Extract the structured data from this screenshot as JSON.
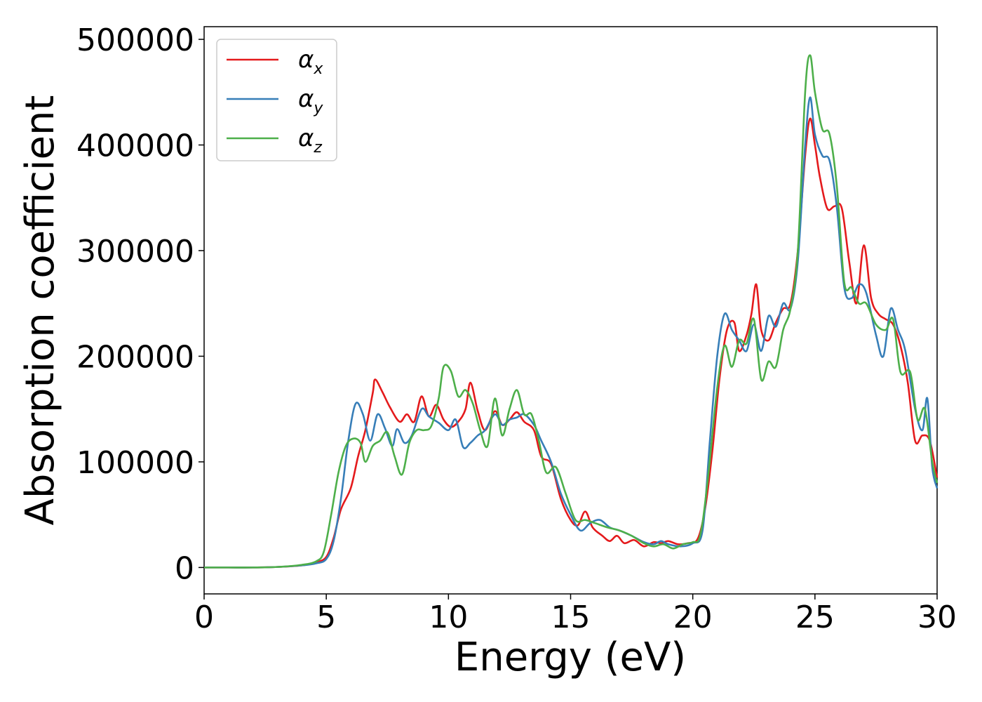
{
  "chart_data": {
    "type": "line",
    "xlabel": "Energy (eV)",
    "ylabel": "Absorption coefficient",
    "xlim": [
      0,
      30
    ],
    "ylim": [
      -25000,
      512000
    ],
    "xticks": [
      0,
      5,
      10,
      15,
      20,
      25,
      30
    ],
    "xtick_labels": [
      "0",
      "5",
      "10",
      "15",
      "20",
      "25",
      "30"
    ],
    "yticks": [
      0,
      100000,
      200000,
      300000,
      400000,
      500000
    ],
    "ytick_labels": [
      "0",
      "100000",
      "200000",
      "300000",
      "400000",
      "500000"
    ],
    "grid": false,
    "legend_position": "top-left",
    "series": [
      {
        "name": "α",
        "subscript": "x",
        "color": "#e41a1c",
        "points": [
          [
            0,
            0
          ],
          [
            1,
            0
          ],
          [
            2,
            0
          ],
          [
            3,
            500
          ],
          [
            4,
            2000
          ],
          [
            4.6,
            5000
          ],
          [
            5,
            10000
          ],
          [
            5.3,
            28000
          ],
          [
            5.6,
            55000
          ],
          [
            6,
            75000
          ],
          [
            6.3,
            105000
          ],
          [
            6.6,
            130000
          ],
          [
            6.9,
            165000
          ],
          [
            7.0,
            178000
          ],
          [
            7.3,
            166000
          ],
          [
            7.6,
            152000
          ],
          [
            8,
            138000
          ],
          [
            8.3,
            145000
          ],
          [
            8.6,
            138000
          ],
          [
            8.9,
            162000
          ],
          [
            9.2,
            143000
          ],
          [
            9.5,
            154000
          ],
          [
            9.8,
            140000
          ],
          [
            10.1,
            133000
          ],
          [
            10.4,
            138000
          ],
          [
            10.7,
            150000
          ],
          [
            10.9,
            175000
          ],
          [
            11.2,
            148000
          ],
          [
            11.5,
            130000
          ],
          [
            11.9,
            148000
          ],
          [
            12.2,
            135000
          ],
          [
            12.5,
            140000
          ],
          [
            12.8,
            147000
          ],
          [
            13.1,
            138000
          ],
          [
            13.5,
            130000
          ],
          [
            13.8,
            105000
          ],
          [
            14.2,
            98000
          ],
          [
            14.6,
            65000
          ],
          [
            15,
            45000
          ],
          [
            15.3,
            40000
          ],
          [
            15.6,
            53000
          ],
          [
            15.9,
            38000
          ],
          [
            16.3,
            30000
          ],
          [
            16.6,
            25000
          ],
          [
            16.9,
            30000
          ],
          [
            17.2,
            23000
          ],
          [
            17.6,
            26000
          ],
          [
            18,
            20000
          ],
          [
            18.4,
            24000
          ],
          [
            18.7,
            23000
          ],
          [
            19,
            25000
          ],
          [
            19.4,
            22000
          ],
          [
            19.8,
            23000
          ],
          [
            20.2,
            27000
          ],
          [
            20.5,
            55000
          ],
          [
            20.8,
            110000
          ],
          [
            21.1,
            180000
          ],
          [
            21.4,
            225000
          ],
          [
            21.7,
            232000
          ],
          [
            21.9,
            205000
          ],
          [
            22.2,
            220000
          ],
          [
            22.4,
            240000
          ],
          [
            22.6,
            268000
          ],
          [
            22.8,
            225000
          ],
          [
            23.1,
            215000
          ],
          [
            23.4,
            232000
          ],
          [
            23.7,
            245000
          ],
          [
            24,
            250000
          ],
          [
            24.3,
            300000
          ],
          [
            24.6,
            390000
          ],
          [
            24.8,
            425000
          ],
          [
            25.0,
            400000
          ],
          [
            25.2,
            370000
          ],
          [
            25.5,
            340000
          ],
          [
            25.8,
            342000
          ],
          [
            26.1,
            340000
          ],
          [
            26.4,
            290000
          ],
          [
            26.7,
            250000
          ],
          [
            27.0,
            305000
          ],
          [
            27.3,
            255000
          ],
          [
            27.6,
            240000
          ],
          [
            27.9,
            235000
          ],
          [
            28.2,
            230000
          ],
          [
            28.5,
            210000
          ],
          [
            28.8,
            175000
          ],
          [
            29.1,
            120000
          ],
          [
            29.4,
            125000
          ],
          [
            29.7,
            120000
          ],
          [
            30,
            85000
          ]
        ]
      },
      {
        "name": "α",
        "subscript": "y",
        "color": "#377eb8",
        "points": [
          [
            0,
            0
          ],
          [
            1,
            0
          ],
          [
            2,
            0
          ],
          [
            3,
            500
          ],
          [
            4,
            2000
          ],
          [
            4.6,
            4000
          ],
          [
            5,
            8000
          ],
          [
            5.3,
            25000
          ],
          [
            5.6,
            65000
          ],
          [
            5.9,
            120000
          ],
          [
            6.2,
            155000
          ],
          [
            6.5,
            145000
          ],
          [
            6.8,
            120000
          ],
          [
            7.1,
            145000
          ],
          [
            7.4,
            132000
          ],
          [
            7.7,
            115000
          ],
          [
            7.9,
            131000
          ],
          [
            8.2,
            118000
          ],
          [
            8.5,
            125000
          ],
          [
            8.9,
            150000
          ],
          [
            9.2,
            143000
          ],
          [
            9.6,
            137000
          ],
          [
            10.0,
            130000
          ],
          [
            10.3,
            140000
          ],
          [
            10.6,
            114000
          ],
          [
            10.9,
            118000
          ],
          [
            11.2,
            125000
          ],
          [
            11.5,
            130000
          ],
          [
            11.9,
            145000
          ],
          [
            12.2,
            135000
          ],
          [
            12.5,
            140000
          ],
          [
            12.8,
            142000
          ],
          [
            13.1,
            145000
          ],
          [
            13.5,
            135000
          ],
          [
            13.8,
            120000
          ],
          [
            14.2,
            100000
          ],
          [
            14.6,
            70000
          ],
          [
            15,
            50000
          ],
          [
            15.4,
            35000
          ],
          [
            15.8,
            42000
          ],
          [
            16.2,
            45000
          ],
          [
            16.6,
            38000
          ],
          [
            17,
            35000
          ],
          [
            17.5,
            30000
          ],
          [
            18,
            24000
          ],
          [
            18.4,
            22000
          ],
          [
            18.7,
            25000
          ],
          [
            19,
            22000
          ],
          [
            19.5,
            20000
          ],
          [
            20,
            23000
          ],
          [
            20.4,
            35000
          ],
          [
            20.7,
            120000
          ],
          [
            21,
            200000
          ],
          [
            21.3,
            240000
          ],
          [
            21.6,
            225000
          ],
          [
            21.9,
            215000
          ],
          [
            22.2,
            205000
          ],
          [
            22.5,
            230000
          ],
          [
            22.8,
            205000
          ],
          [
            23.1,
            238000
          ],
          [
            23.4,
            228000
          ],
          [
            23.7,
            250000
          ],
          [
            24.0,
            245000
          ],
          [
            24.3,
            290000
          ],
          [
            24.6,
            400000
          ],
          [
            24.8,
            445000
          ],
          [
            25.0,
            410000
          ],
          [
            25.3,
            390000
          ],
          [
            25.6,
            385000
          ],
          [
            25.9,
            340000
          ],
          [
            26.2,
            265000
          ],
          [
            26.5,
            255000
          ],
          [
            26.8,
            268000
          ],
          [
            27.1,
            260000
          ],
          [
            27.5,
            220000
          ],
          [
            27.8,
            200000
          ],
          [
            28.1,
            245000
          ],
          [
            28.4,
            225000
          ],
          [
            28.7,
            205000
          ],
          [
            29.1,
            150000
          ],
          [
            29.4,
            130000
          ],
          [
            29.6,
            160000
          ],
          [
            29.8,
            95000
          ],
          [
            30,
            75000
          ]
        ]
      },
      {
        "name": "α",
        "subscript": "z",
        "color": "#4daf4a",
        "points": [
          [
            0,
            0
          ],
          [
            1,
            0
          ],
          [
            2,
            0
          ],
          [
            3,
            500
          ],
          [
            4,
            2500
          ],
          [
            4.6,
            6000
          ],
          [
            4.9,
            15000
          ],
          [
            5.2,
            50000
          ],
          [
            5.5,
            90000
          ],
          [
            5.8,
            115000
          ],
          [
            6.1,
            122000
          ],
          [
            6.4,
            118000
          ],
          [
            6.6,
            100000
          ],
          [
            6.9,
            115000
          ],
          [
            7.2,
            120000
          ],
          [
            7.5,
            128000
          ],
          [
            7.8,
            105000
          ],
          [
            8.1,
            88000
          ],
          [
            8.4,
            118000
          ],
          [
            8.7,
            130000
          ],
          [
            9.0,
            130000
          ],
          [
            9.3,
            134000
          ],
          [
            9.6,
            160000
          ],
          [
            9.8,
            190000
          ],
          [
            10.1,
            186000
          ],
          [
            10.4,
            162000
          ],
          [
            10.7,
            168000
          ],
          [
            11.0,
            155000
          ],
          [
            11.3,
            130000
          ],
          [
            11.6,
            115000
          ],
          [
            11.9,
            160000
          ],
          [
            12.2,
            125000
          ],
          [
            12.5,
            150000
          ],
          [
            12.8,
            168000
          ],
          [
            13.1,
            145000
          ],
          [
            13.4,
            145000
          ],
          [
            13.7,
            120000
          ],
          [
            14.0,
            90000
          ],
          [
            14.4,
            95000
          ],
          [
            14.8,
            70000
          ],
          [
            15.2,
            45000
          ],
          [
            15.6,
            45000
          ],
          [
            16,
            42000
          ],
          [
            16.5,
            38000
          ],
          [
            17,
            35000
          ],
          [
            17.5,
            30000
          ],
          [
            18,
            23000
          ],
          [
            18.4,
            20000
          ],
          [
            18.8,
            22000
          ],
          [
            19.2,
            18000
          ],
          [
            19.6,
            22000
          ],
          [
            20,
            24000
          ],
          [
            20.3,
            30000
          ],
          [
            20.6,
            80000
          ],
          [
            21,
            170000
          ],
          [
            21.3,
            210000
          ],
          [
            21.6,
            190000
          ],
          [
            21.9,
            215000
          ],
          [
            22.2,
            212000
          ],
          [
            22.5,
            235000
          ],
          [
            22.8,
            178000
          ],
          [
            23.1,
            195000
          ],
          [
            23.4,
            190000
          ],
          [
            23.7,
            225000
          ],
          [
            24.0,
            245000
          ],
          [
            24.3,
            300000
          ],
          [
            24.6,
            450000
          ],
          [
            24.8,
            485000
          ],
          [
            25.0,
            450000
          ],
          [
            25.3,
            415000
          ],
          [
            25.6,
            410000
          ],
          [
            25.9,
            360000
          ],
          [
            26.2,
            270000
          ],
          [
            26.5,
            265000
          ],
          [
            26.8,
            250000
          ],
          [
            27.1,
            250000
          ],
          [
            27.5,
            230000
          ],
          [
            27.9,
            225000
          ],
          [
            28.2,
            235000
          ],
          [
            28.5,
            185000
          ],
          [
            28.9,
            185000
          ],
          [
            29.2,
            140000
          ],
          [
            29.5,
            150000
          ],
          [
            29.8,
            100000
          ],
          [
            30,
            80000
          ]
        ]
      }
    ]
  }
}
